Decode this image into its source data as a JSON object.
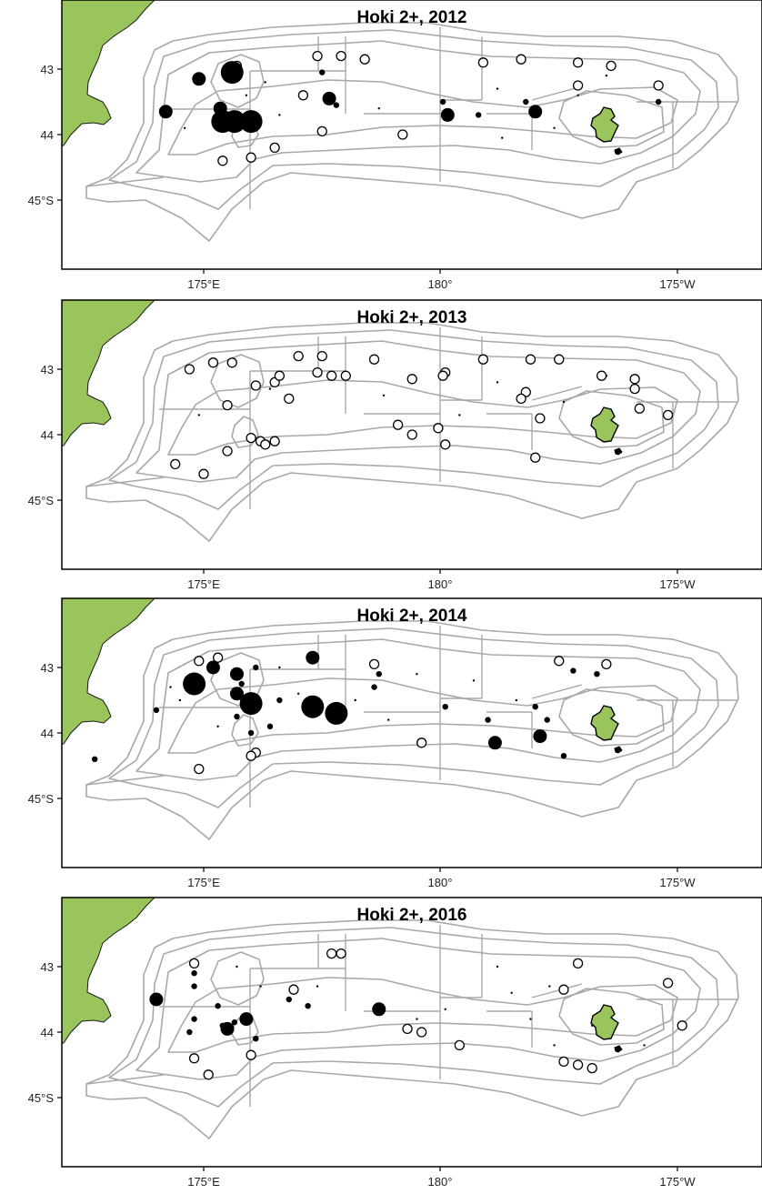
{
  "figure": {
    "panels": [
      {
        "title": "Hoki 2+, 2012",
        "x_ticks": [
          "175°E",
          "180°",
          "175°W"
        ],
        "y_ticks": [
          "43",
          "44",
          "45°S"
        ],
        "catches": [
          {
            "lon": 175.6,
            "lat": 43.05,
            "size": "large"
          },
          {
            "lon": 175.4,
            "lat": 43.8,
            "size": "large"
          },
          {
            "lon": 175.65,
            "lat": 43.8,
            "size": "large"
          },
          {
            "lon": 176.0,
            "lat": 43.8,
            "size": "large"
          },
          {
            "lon": 174.2,
            "lat": 43.65,
            "size": "medium"
          },
          {
            "lon": 174.9,
            "lat": 43.15,
            "size": "medium"
          },
          {
            "lon": 175.35,
            "lat": 43.6,
            "size": "medium"
          },
          {
            "lon": 177.65,
            "lat": 43.45,
            "size": "medium"
          },
          {
            "lon": 180.15,
            "lat": 43.7,
            "size": "medium"
          },
          {
            "lon": 182.0,
            "lat": 43.65,
            "size": "medium"
          },
          {
            "lon": 177.5,
            "lat": 43.05,
            "size": "small"
          },
          {
            "lon": 177.8,
            "lat": 43.55,
            "size": "small"
          },
          {
            "lon": 180.05,
            "lat": 43.5,
            "size": "small"
          },
          {
            "lon": 180.8,
            "lat": 43.7,
            "size": "small"
          },
          {
            "lon": 181.8,
            "lat": 43.5,
            "size": "small"
          },
          {
            "lon": 184.6,
            "lat": 43.5,
            "size": "small"
          },
          {
            "lon": 175.9,
            "lat": 43.4,
            "size": "tiny"
          },
          {
            "lon": 176.3,
            "lat": 43.2,
            "size": "tiny"
          },
          {
            "lon": 176.6,
            "lat": 43.7,
            "size": "tiny"
          },
          {
            "lon": 178.7,
            "lat": 43.6,
            "size": "tiny"
          },
          {
            "lon": 181.2,
            "lat": 43.3,
            "size": "tiny"
          },
          {
            "lon": 182.4,
            "lat": 43.9,
            "size": "tiny"
          },
          {
            "lon": 182.9,
            "lat": 43.4,
            "size": "tiny"
          },
          {
            "lon": 183.5,
            "lat": 43.1,
            "size": "tiny"
          },
          {
            "lon": 174.6,
            "lat": 43.9,
            "size": "tiny"
          },
          {
            "lon": 181.3,
            "lat": 44.05,
            "size": "tiny"
          }
        ],
        "surveys": [
          {
            "lon": 175.7,
            "lat": 42.95
          },
          {
            "lon": 177.4,
            "lat": 42.8
          },
          {
            "lon": 177.9,
            "lat": 42.8
          },
          {
            "lon": 178.4,
            "lat": 42.85
          },
          {
            "lon": 177.1,
            "lat": 43.4
          },
          {
            "lon": 177.5,
            "lat": 43.95
          },
          {
            "lon": 176.5,
            "lat": 44.2
          },
          {
            "lon": 176.0,
            "lat": 44.35
          },
          {
            "lon": 175.4,
            "lat": 44.4
          },
          {
            "lon": 179.2,
            "lat": 44.0
          },
          {
            "lon": 180.9,
            "lat": 42.9
          },
          {
            "lon": 181.7,
            "lat": 42.85
          },
          {
            "lon": 182.9,
            "lat": 42.9
          },
          {
            "lon": 183.6,
            "lat": 42.95
          },
          {
            "lon": 182.9,
            "lat": 43.25
          },
          {
            "lon": 184.6,
            "lat": 43.25
          }
        ]
      },
      {
        "title": "Hoki 2+, 2013",
        "x_ticks": [
          "175°E",
          "180°",
          "175°W"
        ],
        "y_ticks": [
          "43",
          "44",
          "45°S"
        ],
        "catches": [
          {
            "lon": 174.9,
            "lat": 43.7,
            "size": "tiny"
          },
          {
            "lon": 176.4,
            "lat": 43.3,
            "size": "tiny"
          },
          {
            "lon": 178.8,
            "lat": 43.4,
            "size": "tiny"
          },
          {
            "lon": 181.2,
            "lat": 43.2,
            "size": "tiny"
          },
          {
            "lon": 183.5,
            "lat": 43.1,
            "size": "tiny"
          },
          {
            "lon": 180.4,
            "lat": 43.7,
            "size": "tiny"
          },
          {
            "lon": 182.6,
            "lat": 43.5,
            "size": "tiny"
          }
        ],
        "surveys": [
          {
            "lon": 174.7,
            "lat": 43.0
          },
          {
            "lon": 175.2,
            "lat": 42.9
          },
          {
            "lon": 175.6,
            "lat": 42.9
          },
          {
            "lon": 176.1,
            "lat": 43.25
          },
          {
            "lon": 176.5,
            "lat": 43.2
          },
          {
            "lon": 176.6,
            "lat": 43.1
          },
          {
            "lon": 177.0,
            "lat": 42.8
          },
          {
            "lon": 177.5,
            "lat": 42.8
          },
          {
            "lon": 177.4,
            "lat": 43.05
          },
          {
            "lon": 177.7,
            "lat": 43.1
          },
          {
            "lon": 178.0,
            "lat": 43.1
          },
          {
            "lon": 178.6,
            "lat": 42.85
          },
          {
            "lon": 176.8,
            "lat": 43.45
          },
          {
            "lon": 175.5,
            "lat": 43.55
          },
          {
            "lon": 176.0,
            "lat": 44.05
          },
          {
            "lon": 176.2,
            "lat": 44.1
          },
          {
            "lon": 176.3,
            "lat": 44.15
          },
          {
            "lon": 176.5,
            "lat": 44.1
          },
          {
            "lon": 175.5,
            "lat": 44.25
          },
          {
            "lon": 174.4,
            "lat": 44.45
          },
          {
            "lon": 175.0,
            "lat": 44.6
          },
          {
            "lon": 179.4,
            "lat": 43.15
          },
          {
            "lon": 179.1,
            "lat": 43.85
          },
          {
            "lon": 179.4,
            "lat": 44.0
          },
          {
            "lon": 179.95,
            "lat": 43.9
          },
          {
            "lon": 180.1,
            "lat": 43.05
          },
          {
            "lon": 180.05,
            "lat": 43.1
          },
          {
            "lon": 180.9,
            "lat": 42.85
          },
          {
            "lon": 181.9,
            "lat": 42.85
          },
          {
            "lon": 182.5,
            "lat": 42.85
          },
          {
            "lon": 181.8,
            "lat": 43.35
          },
          {
            "lon": 181.7,
            "lat": 43.45
          },
          {
            "lon": 182.1,
            "lat": 43.75
          },
          {
            "lon": 182.0,
            "lat": 44.35
          },
          {
            "lon": 180.1,
            "lat": 44.15
          },
          {
            "lon": 183.4,
            "lat": 43.1
          },
          {
            "lon": 184.1,
            "lat": 43.15
          },
          {
            "lon": 184.1,
            "lat": 43.3
          },
          {
            "lon": 184.2,
            "lat": 43.6
          },
          {
            "lon": 184.8,
            "lat": 43.7
          }
        ]
      },
      {
        "title": "Hoki 2+, 2014",
        "x_ticks": [
          "175°E",
          "180°",
          "175°W"
        ],
        "y_ticks": [
          "43",
          "44",
          "45°S"
        ],
        "catches": [
          {
            "lon": 174.8,
            "lat": 43.25,
            "size": "large"
          },
          {
            "lon": 176.0,
            "lat": 43.55,
            "size": "large"
          },
          {
            "lon": 177.3,
            "lat": 43.6,
            "size": "large"
          },
          {
            "lon": 177.8,
            "lat": 43.7,
            "size": "large"
          },
          {
            "lon": 177.3,
            "lat": 42.85,
            "size": "medium"
          },
          {
            "lon": 175.7,
            "lat": 43.1,
            "size": "medium"
          },
          {
            "lon": 175.2,
            "lat": 43.0,
            "size": "medium"
          },
          {
            "lon": 175.7,
            "lat": 43.4,
            "size": "medium"
          },
          {
            "lon": 182.1,
            "lat": 44.05,
            "size": "medium"
          },
          {
            "lon": 181.15,
            "lat": 44.15,
            "size": "medium"
          },
          {
            "lon": 176.1,
            "lat": 43.0,
            "size": "small"
          },
          {
            "lon": 176.6,
            "lat": 43.5,
            "size": "small"
          },
          {
            "lon": 178.7,
            "lat": 43.1,
            "size": "small"
          },
          {
            "lon": 178.6,
            "lat": 43.3,
            "size": "small"
          },
          {
            "lon": 180.1,
            "lat": 43.6,
            "size": "small"
          },
          {
            "lon": 182.8,
            "lat": 43.05,
            "size": "small"
          },
          {
            "lon": 183.3,
            "lat": 43.1,
            "size": "small"
          },
          {
            "lon": 182.0,
            "lat": 43.6,
            "size": "small"
          },
          {
            "lon": 174.0,
            "lat": 43.65,
            "size": "small"
          },
          {
            "lon": 172.7,
            "lat": 44.4,
            "size": "small"
          },
          {
            "lon": 175.8,
            "lat": 43.25,
            "size": "small"
          },
          {
            "lon": 175.7,
            "lat": 43.75,
            "size": "small"
          },
          {
            "lon": 176.4,
            "lat": 43.9,
            "size": "small"
          },
          {
            "lon": 176.0,
            "lat": 44.0,
            "size": "small"
          },
          {
            "lon": 181.0,
            "lat": 43.8,
            "size": "small"
          },
          {
            "lon": 182.25,
            "lat": 43.8,
            "size": "small"
          },
          {
            "lon": 182.6,
            "lat": 44.35,
            "size": "small"
          },
          {
            "lon": 176.6,
            "lat": 43.0,
            "size": "tiny"
          },
          {
            "lon": 177.0,
            "lat": 43.4,
            "size": "tiny"
          },
          {
            "lon": 178.2,
            "lat": 43.5,
            "size": "tiny"
          },
          {
            "lon": 179.5,
            "lat": 43.1,
            "size": "tiny"
          },
          {
            "lon": 180.7,
            "lat": 43.2,
            "size": "tiny"
          },
          {
            "lon": 181.6,
            "lat": 43.5,
            "size": "tiny"
          },
          {
            "lon": 174.5,
            "lat": 43.5,
            "size": "tiny"
          },
          {
            "lon": 175.3,
            "lat": 43.9,
            "size": "tiny"
          },
          {
            "lon": 174.3,
            "lat": 43.3,
            "size": "tiny"
          },
          {
            "lon": 178.9,
            "lat": 43.8,
            "size": "tiny"
          }
        ],
        "surveys": [
          {
            "lon": 174.9,
            "lat": 42.9
          },
          {
            "lon": 175.3,
            "lat": 42.85
          },
          {
            "lon": 176.1,
            "lat": 44.3
          },
          {
            "lon": 176.0,
            "lat": 44.35
          },
          {
            "lon": 174.9,
            "lat": 44.55
          },
          {
            "lon": 178.6,
            "lat": 42.95
          },
          {
            "lon": 179.6,
            "lat": 44.15
          },
          {
            "lon": 182.5,
            "lat": 42.9
          },
          {
            "lon": 183.5,
            "lat": 42.95
          }
        ]
      },
      {
        "title": "Hoki 2+, 2016",
        "x_ticks": [
          "175°E",
          "180°",
          "175°W"
        ],
        "y_ticks": [
          "43",
          "44",
          "45°S"
        ],
        "catches": [
          {
            "lon": 178.7,
            "lat": 43.65,
            "size": "medium"
          },
          {
            "lon": 175.5,
            "lat": 43.95,
            "size": "medium"
          },
          {
            "lon": 175.9,
            "lat": 43.8,
            "size": "medium"
          },
          {
            "lon": 174.0,
            "lat": 43.5,
            "size": "medium"
          },
          {
            "lon": 174.8,
            "lat": 43.1,
            "size": "small"
          },
          {
            "lon": 174.8,
            "lat": 43.3,
            "size": "small"
          },
          {
            "lon": 175.3,
            "lat": 43.6,
            "size": "small"
          },
          {
            "lon": 175.4,
            "lat": 43.9,
            "size": "small"
          },
          {
            "lon": 175.65,
            "lat": 43.85,
            "size": "small"
          },
          {
            "lon": 176.1,
            "lat": 44.1,
            "size": "small"
          },
          {
            "lon": 176.8,
            "lat": 43.5,
            "size": "small"
          },
          {
            "lon": 177.2,
            "lat": 43.6,
            "size": "small"
          },
          {
            "lon": 174.8,
            "lat": 43.8,
            "size": "small"
          },
          {
            "lon": 174.7,
            "lat": 44.0,
            "size": "small"
          },
          {
            "lon": 175.7,
            "lat": 43.0,
            "size": "tiny"
          },
          {
            "lon": 176.2,
            "lat": 43.3,
            "size": "tiny"
          },
          {
            "lon": 177.4,
            "lat": 43.3,
            "size": "tiny"
          },
          {
            "lon": 179.5,
            "lat": 43.8,
            "size": "tiny"
          },
          {
            "lon": 180.1,
            "lat": 43.65,
            "size": "tiny"
          },
          {
            "lon": 181.5,
            "lat": 43.4,
            "size": "tiny"
          },
          {
            "lon": 181.9,
            "lat": 43.8,
            "size": "tiny"
          },
          {
            "lon": 182.3,
            "lat": 43.3,
            "size": "tiny"
          },
          {
            "lon": 182.4,
            "lat": 44.2,
            "size": "tiny"
          },
          {
            "lon": 183.2,
            "lat": 43.9,
            "size": "tiny"
          },
          {
            "lon": 184.3,
            "lat": 44.2,
            "size": "tiny"
          },
          {
            "lon": 181.2,
            "lat": 43.0,
            "size": "tiny"
          }
        ],
        "surveys": [
          {
            "lon": 174.8,
            "lat": 42.95
          },
          {
            "lon": 177.7,
            "lat": 42.8
          },
          {
            "lon": 177.9,
            "lat": 42.8
          },
          {
            "lon": 176.9,
            "lat": 43.35
          },
          {
            "lon": 176.0,
            "lat": 44.35
          },
          {
            "lon": 174.8,
            "lat": 44.4
          },
          {
            "lon": 175.1,
            "lat": 44.65
          },
          {
            "lon": 179.3,
            "lat": 43.95
          },
          {
            "lon": 179.6,
            "lat": 44.0
          },
          {
            "lon": 180.4,
            "lat": 44.2
          },
          {
            "lon": 182.9,
            "lat": 42.95
          },
          {
            "lon": 182.6,
            "lat": 43.35
          },
          {
            "lon": 182.6,
            "lat": 44.45
          },
          {
            "lon": 182.9,
            "lat": 44.5
          },
          {
            "lon": 183.2,
            "lat": 44.55
          },
          {
            "lon": 184.8,
            "lat": 43.25
          },
          {
            "lon": 185.1,
            "lat": 43.9
          }
        ]
      }
    ],
    "colors": {
      "land": "#99c55c",
      "contour": "#a8a8a8",
      "catch": "#000000",
      "survey_ring": "#000000",
      "frame": "#000000"
    },
    "marker_sizes": [
      "tiny",
      "small",
      "medium",
      "large"
    ]
  }
}
